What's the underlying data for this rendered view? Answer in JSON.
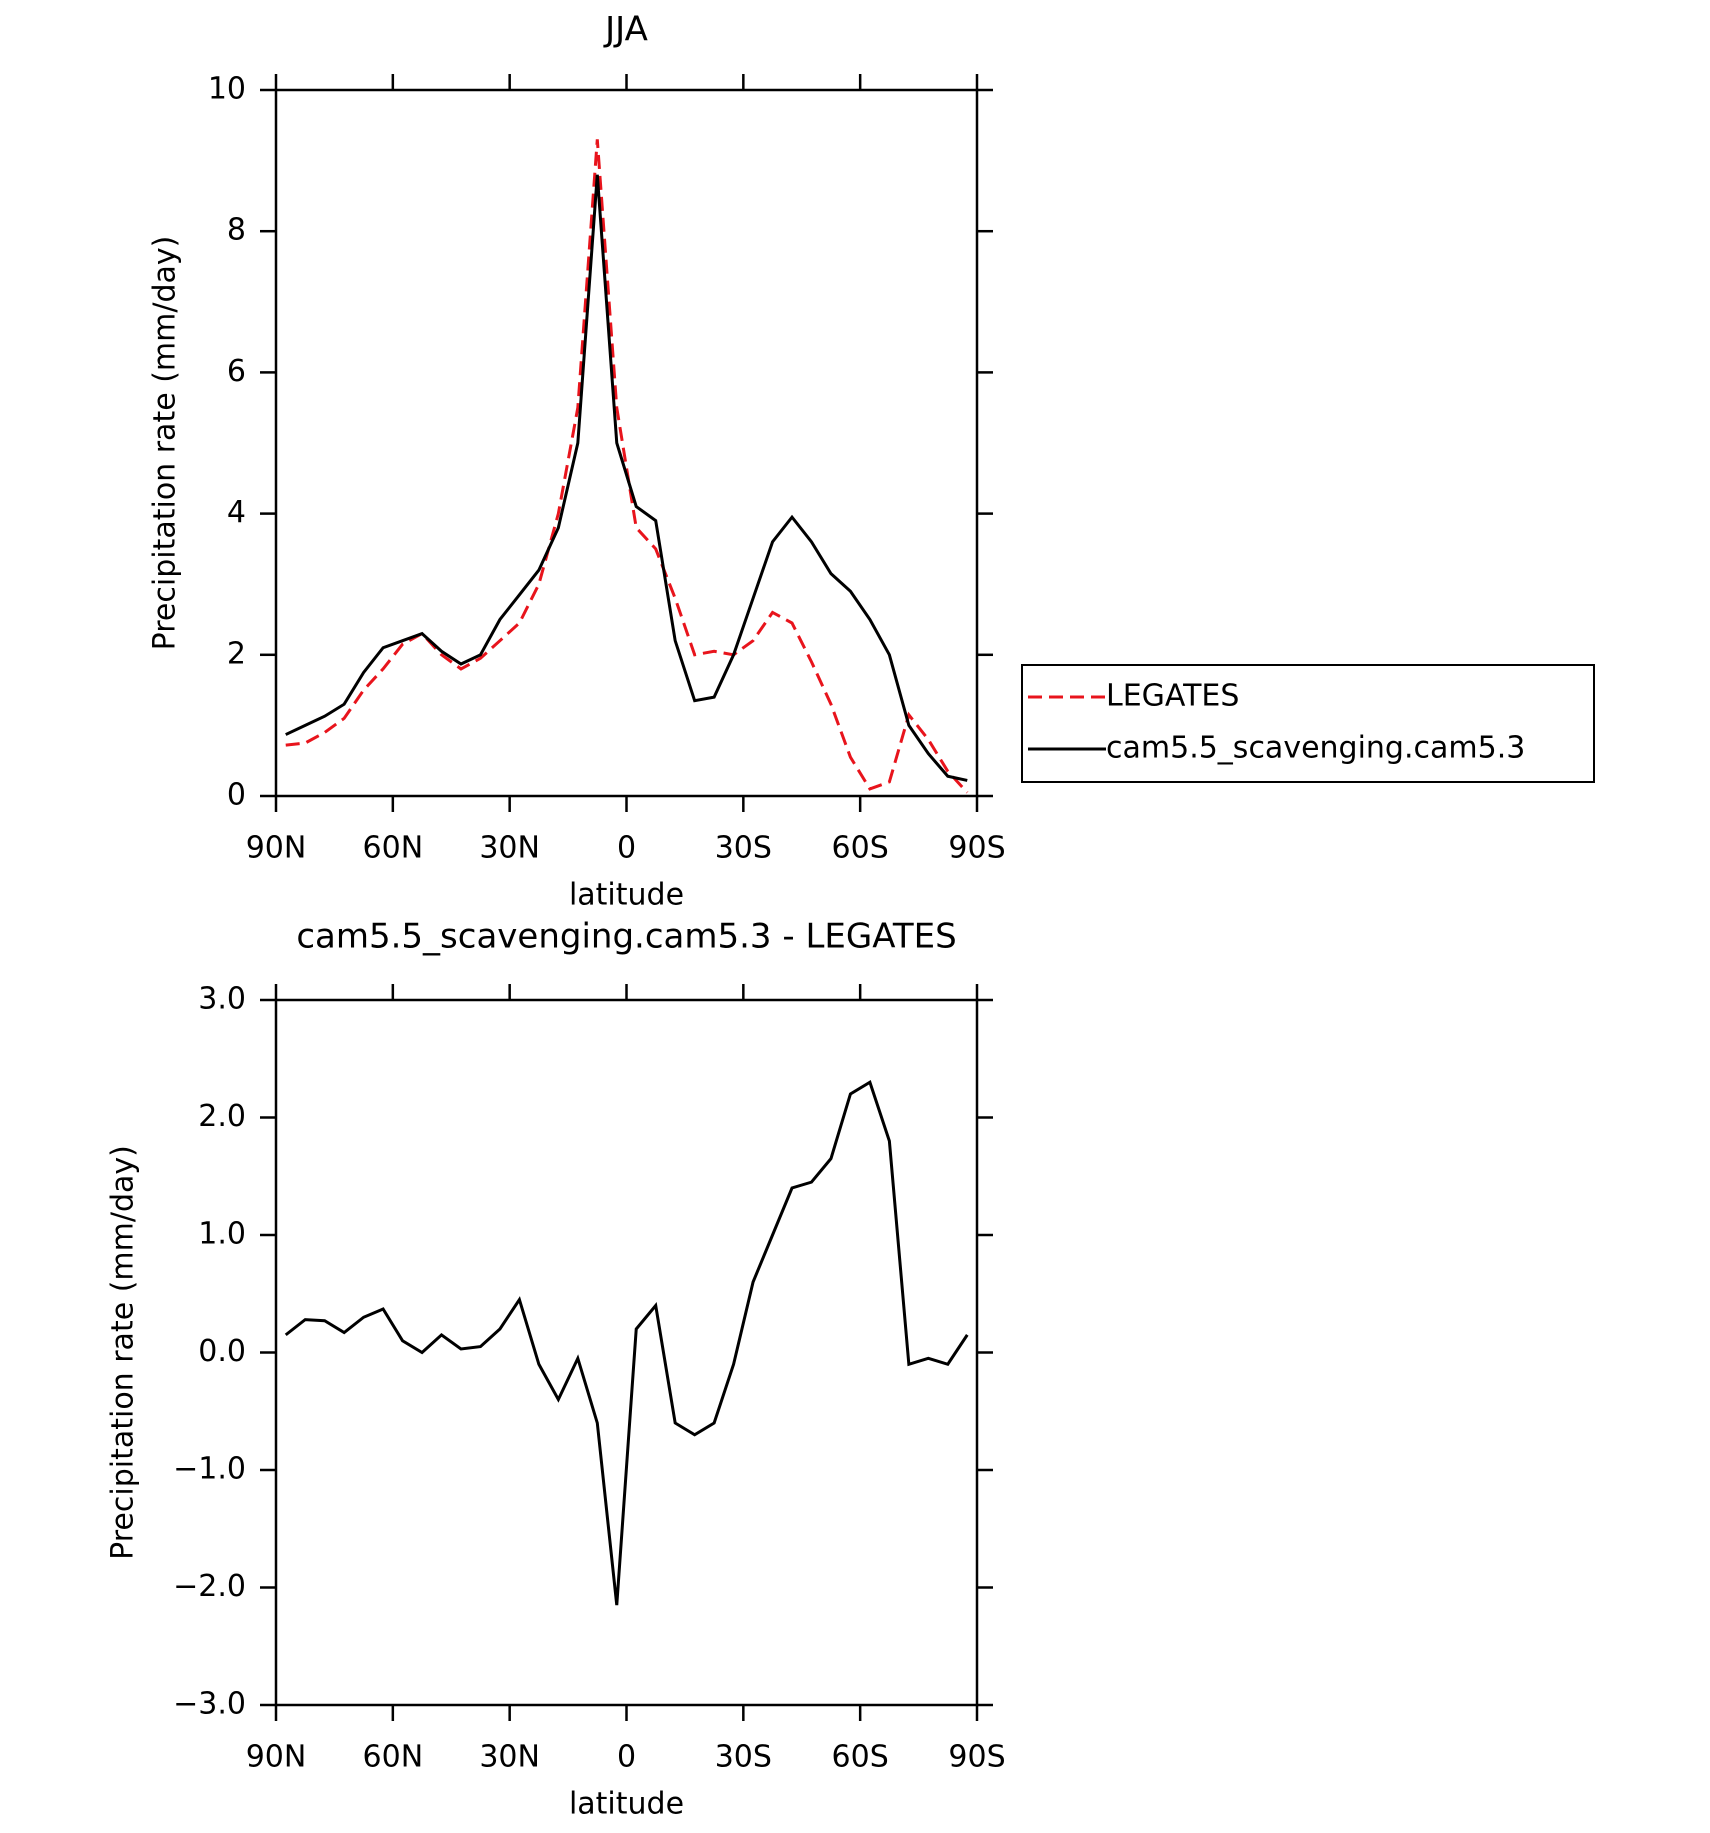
{
  "chart_data": [
    {
      "type": "line",
      "title": "JJA",
      "xlabel": "latitude",
      "ylabel": "Precipitation rate (mm/day)",
      "x": [
        87.5,
        82.5,
        77.5,
        72.5,
        67.5,
        62.5,
        57.5,
        52.5,
        47.5,
        42.5,
        37.5,
        32.5,
        27.5,
        22.5,
        17.5,
        12.5,
        7.5,
        2.5,
        -2.5,
        -7.5,
        -12.5,
        -17.5,
        -22.5,
        -27.5,
        -32.5,
        -37.5,
        -42.5,
        -47.5,
        -52.5,
        -57.5,
        -62.5,
        -67.5,
        -72.5,
        -77.5,
        -82.5,
        -87.5
      ],
      "series": [
        {
          "name": "LEGATES",
          "color": "#e8141c",
          "dash": true,
          "values": [
            0.72,
            0.75,
            0.9,
            1.1,
            1.5,
            1.8,
            2.15,
            2.3,
            2.0,
            1.8,
            1.95,
            2.2,
            2.45,
            3.0,
            4.0,
            5.5,
            9.3,
            5.5,
            3.8,
            3.5,
            2.8,
            2.0,
            2.05,
            2.0,
            2.2,
            2.6,
            2.45,
            1.9,
            1.3,
            0.55,
            0.1,
            0.2,
            1.15,
            0.8,
            0.35,
            0.05
          ]
        },
        {
          "name": "cam5.5_scavenging.cam5.3",
          "color": "#000000",
          "dash": false,
          "values": [
            0.87,
            1.0,
            1.13,
            1.3,
            1.75,
            2.1,
            2.2,
            2.3,
            2.05,
            1.87,
            2.0,
            2.5,
            2.85,
            3.2,
            3.8,
            5.0,
            8.8,
            5.0,
            4.1,
            3.9,
            2.2,
            1.35,
            1.4,
            2.0,
            2.8,
            3.6,
            3.95,
            3.6,
            3.15,
            2.9,
            2.5,
            2.0,
            1.0,
            0.6,
            0.28,
            0.22
          ]
        }
      ],
      "xlim": [
        90,
        -90
      ],
      "xticks": [
        {
          "value": 90,
          "label": "90N"
        },
        {
          "value": 60,
          "label": "60N"
        },
        {
          "value": 30,
          "label": "30N"
        },
        0,
        {
          "value": -30,
          "label": "30S"
        },
        {
          "value": -60,
          "label": "60S"
        },
        {
          "value": -90,
          "label": "90S"
        }
      ],
      "ylim": [
        0,
        10
      ],
      "yticks": [
        0,
        2,
        4,
        6,
        8,
        10
      ],
      "legend": "outside-right"
    },
    {
      "type": "line",
      "title": "cam5.5_scavenging.cam5.3 - LEGATES",
      "xlabel": "latitude",
      "ylabel": "Precipitation rate (mm/day)",
      "x": [
        87.5,
        82.5,
        77.5,
        72.5,
        67.5,
        62.5,
        57.5,
        52.5,
        47.5,
        42.5,
        37.5,
        32.5,
        27.5,
        22.5,
        17.5,
        12.5,
        7.5,
        2.5,
        -2.5,
        -7.5,
        -12.5,
        -17.5,
        -22.5,
        -27.5,
        -32.5,
        -37.5,
        -42.5,
        -47.5,
        -52.5,
        -57.5,
        -62.5,
        -67.5,
        -72.5,
        -77.5,
        -82.5,
        -87.5
      ],
      "series": [
        {
          "color": "#000000",
          "dash": false,
          "values": [
            0.15,
            0.28,
            0.27,
            0.17,
            0.3,
            0.37,
            0.1,
            0.0,
            0.15,
            0.03,
            0.05,
            0.2,
            0.45,
            -0.1,
            -0.4,
            -0.05,
            -0.6,
            -2.15,
            0.2,
            0.4,
            -0.6,
            -0.7,
            -0.6,
            -0.1,
            0.6,
            1.0,
            1.4,
            1.45,
            1.65,
            2.2,
            2.3,
            1.8,
            -0.1,
            -0.05,
            -0.1,
            0.15
          ]
        }
      ],
      "xlim": [
        90,
        -90
      ],
      "xticks": [
        {
          "value": 90,
          "label": "90N"
        },
        {
          "value": 60,
          "label": "60N"
        },
        {
          "value": 30,
          "label": "30N"
        },
        0,
        {
          "value": -30,
          "label": "30S"
        },
        {
          "value": -60,
          "label": "60S"
        },
        {
          "value": -90,
          "label": "90S"
        }
      ],
      "ylim": [
        -3,
        3
      ],
      "yticks": [
        {
          "value": -3,
          "label": "−3.0"
        },
        {
          "value": -2,
          "label": "−2.0"
        },
        {
          "value": -1,
          "label": "−1.0"
        },
        {
          "value": 0,
          "label": "0.0"
        },
        {
          "value": 1,
          "label": "1.0"
        },
        {
          "value": 2,
          "label": "2.0"
        },
        {
          "value": 3,
          "label": "3.0"
        }
      ]
    }
  ]
}
